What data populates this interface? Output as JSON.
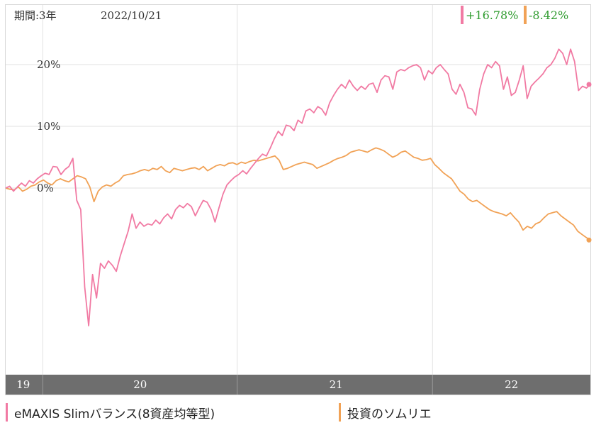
{
  "header": {
    "period": "期間:3年",
    "date": "2022/10/21"
  },
  "chart_data": {
    "type": "line",
    "ylim": [
      -30,
      30
    ],
    "y_ticks": [
      {
        "value": 20,
        "label": "20%"
      },
      {
        "value": 10,
        "label": "10%"
      },
      {
        "value": 0,
        "label": "0%"
      }
    ],
    "x_ticks": [
      {
        "pos": 0.06,
        "label": "19"
      },
      {
        "pos": 0.4,
        "label": "20"
      },
      {
        "pos": 0.73,
        "label": "21"
      },
      {
        "pos": 1.0,
        "label": "22"
      }
    ],
    "x_band_labels": [
      {
        "label": "19",
        "center": 0.03
      },
      {
        "label": "20",
        "center": 0.23
      },
      {
        "label": "21",
        "center": 0.565
      },
      {
        "label": "22",
        "center": 0.865
      }
    ],
    "series": [
      {
        "name": "eMAXIS Slimバランス(8資産均等型)",
        "color": "#f17aa3",
        "final_label": "+16.78%",
        "values": [
          0,
          0.3,
          -0.5,
          0.2,
          0.8,
          0.3,
          1.2,
          0.8,
          1.5,
          2.0,
          2.4,
          2.2,
          3.5,
          3.4,
          2.2,
          3.0,
          3.5,
          4.8,
          -2.0,
          -3.5,
          -16.0,
          -22.3,
          -14.0,
          -17.8,
          -12.2,
          -13.0,
          -11.8,
          -12.5,
          -13.5,
          -11.0,
          -9.0,
          -7.0,
          -4.2,
          -6.5,
          -5.5,
          -6.2,
          -5.8,
          -6.0,
          -5.2,
          -5.8,
          -4.8,
          -4.2,
          -5.0,
          -3.5,
          -2.8,
          -3.2,
          -2.5,
          -3.0,
          -4.5,
          -3.2,
          -2.0,
          -2.3,
          -3.5,
          -5.5,
          -3.2,
          -1.0,
          0.5,
          1.2,
          1.8,
          2.2,
          2.8,
          2.3,
          3.2,
          4.0,
          4.8,
          5.5,
          5.2,
          6.5,
          8.0,
          9.2,
          8.5,
          10.2,
          10.0,
          9.3,
          11.0,
          10.5,
          12.5,
          12.8,
          12.2,
          13.2,
          12.8,
          11.8,
          13.8,
          15.0,
          16.0,
          16.8,
          16.2,
          17.5,
          16.5,
          15.8,
          16.5,
          16.0,
          16.8,
          17.0,
          15.5,
          17.5,
          18.2,
          18.0,
          16.0,
          18.8,
          19.2,
          19.0,
          19.5,
          19.8,
          20.0,
          19.5,
          17.5,
          19.0,
          18.5,
          19.5,
          20.0,
          19.2,
          18.5,
          16.0,
          15.2,
          16.8,
          15.5,
          13.0,
          12.8,
          11.8,
          16.0,
          18.5,
          20.0,
          19.5,
          20.5,
          19.8,
          16.0,
          18.0,
          15.0,
          15.5,
          17.5,
          19.8,
          14.5,
          16.5,
          17.2,
          17.8,
          18.5,
          19.5,
          20.0,
          21.0,
          22.5,
          21.8,
          20.0,
          22.5,
          20.5,
          15.8,
          16.5,
          16.2,
          16.78
        ]
      },
      {
        "name": "投資のソムリエ",
        "color": "#f1a256",
        "final_label": "-8.42%",
        "values": [
          0,
          -0.2,
          -0.3,
          0.2,
          -0.5,
          -0.2,
          0.3,
          0.5,
          1.0,
          1.3,
          0.8,
          0.5,
          1.2,
          1.5,
          1.2,
          1.0,
          1.5,
          2.0,
          1.8,
          1.5,
          0.2,
          -2.2,
          -0.5,
          0.2,
          0.5,
          0.3,
          0.8,
          1.2,
          2.0,
          2.2,
          2.3,
          2.5,
          2.8,
          3.0,
          2.8,
          3.2,
          3.0,
          3.5,
          2.8,
          2.5,
          3.2,
          3.0,
          2.8,
          3.0,
          3.2,
          3.3,
          3.0,
          3.5,
          2.8,
          3.2,
          3.6,
          3.8,
          3.6,
          4.0,
          4.1,
          3.8,
          4.2,
          4.0,
          4.3,
          4.5,
          4.4,
          4.6,
          4.8,
          5.0,
          5.2,
          4.5,
          3.0,
          3.2,
          3.5,
          3.8,
          4.0,
          4.2,
          4.0,
          3.8,
          3.2,
          3.5,
          3.8,
          4.1,
          4.5,
          4.8,
          5.0,
          5.3,
          5.8,
          6.0,
          6.2,
          6.0,
          5.8,
          6.2,
          6.5,
          6.3,
          6.0,
          5.5,
          5.0,
          5.3,
          5.8,
          6.0,
          5.5,
          5.0,
          4.8,
          4.5,
          4.6,
          4.8,
          3.8,
          3.2,
          2.5,
          2.0,
          1.5,
          0.5,
          -0.5,
          -1.0,
          -1.8,
          -2.2,
          -2.0,
          -2.5,
          -3.0,
          -3.5,
          -3.8,
          -4.0,
          -4.2,
          -4.5,
          -4.0,
          -4.8,
          -5.5,
          -6.8,
          -6.2,
          -6.5,
          -5.8,
          -5.5,
          -4.8,
          -4.2,
          -4.0,
          -3.8,
          -4.5,
          -5.0,
          -5.5,
          -6.0,
          -7.0,
          -7.5,
          -8.0,
          -8.42
        ]
      }
    ]
  }
}
